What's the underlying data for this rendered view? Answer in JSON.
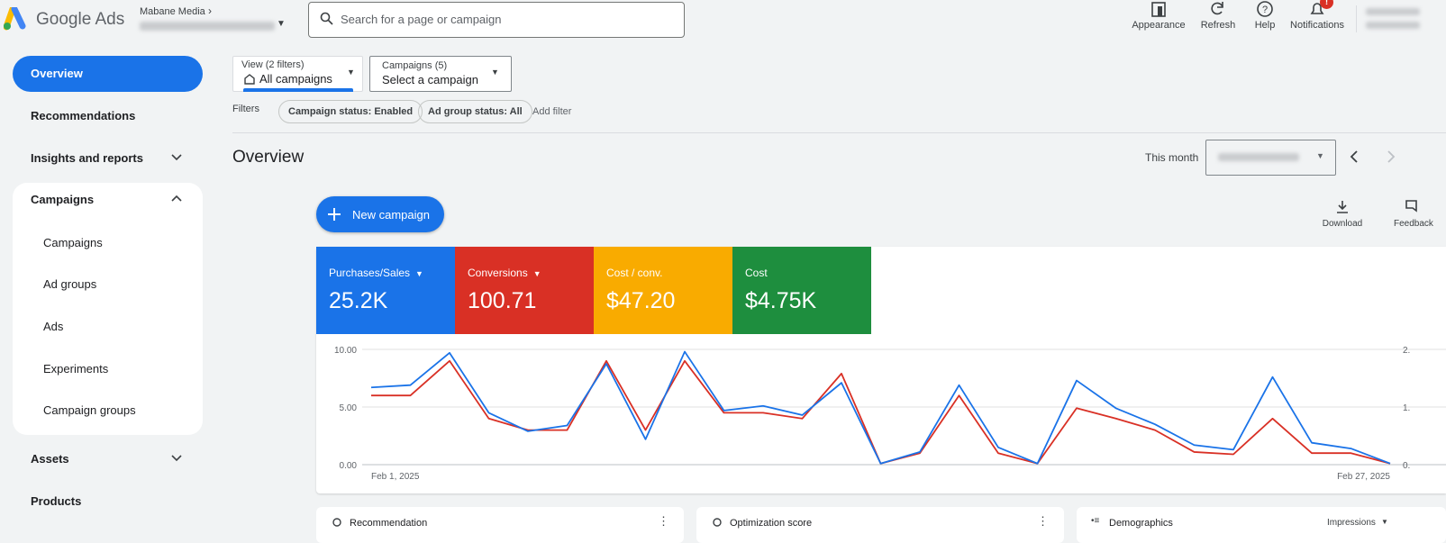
{
  "header": {
    "logo_text": "Google Ads",
    "account_label": "Mabane Media",
    "search_placeholder": "Search for a page or campaign",
    "actions": [
      "Appearance",
      "Refresh",
      "Help",
      "Notifications"
    ],
    "notification_badge": "!"
  },
  "sidebar": {
    "overview": "Overview",
    "recommendations": "Recommendations",
    "insights": "Insights and reports",
    "campaigns_group": "Campaigns",
    "campaigns_children": [
      "Campaigns",
      "Ad groups",
      "Ads",
      "Experiments",
      "Campaign groups"
    ],
    "assets": "Assets",
    "products": "Products"
  },
  "filters": {
    "view_label": "View (2 filters)",
    "view_value": "All campaigns",
    "campaigns_label": "Campaigns (5)",
    "campaigns_value": "Select a campaign",
    "filters_label": "Filters",
    "chips": [
      "Campaign status: Enabled",
      "Ad group status: All"
    ],
    "add_filter": "Add filter"
  },
  "overview": {
    "title": "Overview",
    "period": "This month",
    "new_campaign": "New campaign",
    "tools": [
      "Download",
      "Feedback"
    ]
  },
  "metrics": [
    {
      "label": "Purchases/Sales",
      "value": "25.2K",
      "color": "#1a73e8"
    },
    {
      "label": "Conversions",
      "value": "100.71",
      "color": "#d93025"
    },
    {
      "label": "Cost / conv.",
      "value": "$47.20",
      "color": "#f9ab00"
    },
    {
      "label": "Cost",
      "value": "$4.75K",
      "color": "#1e8e3e"
    }
  ],
  "chart_data": {
    "type": "line",
    "categories": [
      "Feb 1, 2025",
      null,
      null,
      null,
      null,
      null,
      null,
      null,
      null,
      null,
      null,
      null,
      null,
      null,
      null,
      null,
      null,
      null,
      null,
      null,
      null,
      null,
      null,
      null,
      null,
      null,
      "Feb 27, 2025"
    ],
    "series": [
      {
        "color": "#1a73e8",
        "values": [
          6.7,
          6.9,
          9.7,
          4.5,
          2.9,
          3.4,
          8.75,
          2.2,
          9.8,
          4.7,
          5.1,
          4.3,
          7.1,
          0.1,
          1.1,
          6.9,
          1.5,
          0.1,
          7.3,
          4.9,
          3.5,
          1.7,
          1.3,
          7.6,
          1.9,
          1.4,
          0.1
        ]
      },
      {
        "color": "#d93025",
        "values": [
          6.0,
          6.0,
          9.0,
          4.0,
          3.0,
          3.0,
          9.0,
          3.0,
          9.0,
          4.5,
          4.5,
          4.0,
          7.9,
          0.1,
          1.0,
          6.0,
          1.0,
          0.1,
          4.9,
          4.0,
          3.0,
          1.1,
          0.9,
          4.0,
          1.0,
          1.0,
          0.1
        ]
      }
    ],
    "ylim": [
      0,
      10
    ],
    "yticks": [
      {
        "value": 0,
        "label": "0.00"
      },
      {
        "value": 5,
        "label": "5.00"
      },
      {
        "value": 10,
        "label": "10.00"
      }
    ],
    "right_axis_labels": [
      "2.",
      "1.",
      "0."
    ],
    "grid": true
  },
  "cards": {
    "titles": [
      "Recommendation",
      "Optimization score",
      "Demographics"
    ],
    "demographics_selector": "Impressions"
  }
}
